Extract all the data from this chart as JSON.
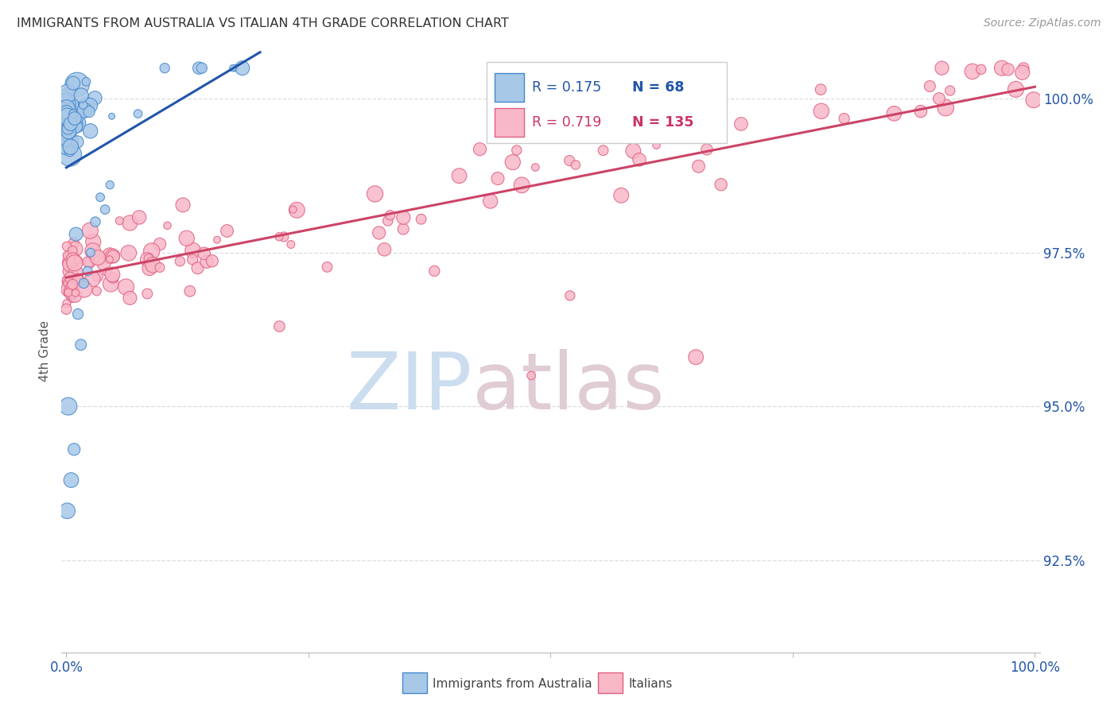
{
  "title": "IMMIGRANTS FROM AUSTRALIA VS ITALIAN 4TH GRADE CORRELATION CHART",
  "source": "Source: ZipAtlas.com",
  "ylabel": "4th Grade",
  "ytick_vals": [
    92.5,
    95.0,
    97.5,
    100.0
  ],
  "legend_australia": "Immigrants from Australia",
  "legend_italians": "Italians",
  "R_australia": "0.175",
  "N_australia": "68",
  "R_italians": "0.719",
  "N_italians": "135",
  "color_blue_fill": "#a8c8e8",
  "color_blue_edge": "#4488cc",
  "color_pink_fill": "#f8b8c8",
  "color_pink_edge": "#e06080",
  "color_blue_line": "#2255aa",
  "color_pink_line": "#cc4466",
  "color_blue_text": "#2255aa",
  "color_pink_text": "#cc3366",
  "background": "#ffffff",
  "grid_color": "#dddddd",
  "ymin": 91.0,
  "ymax": 100.8,
  "xmin": -0.005,
  "xmax": 1.005
}
